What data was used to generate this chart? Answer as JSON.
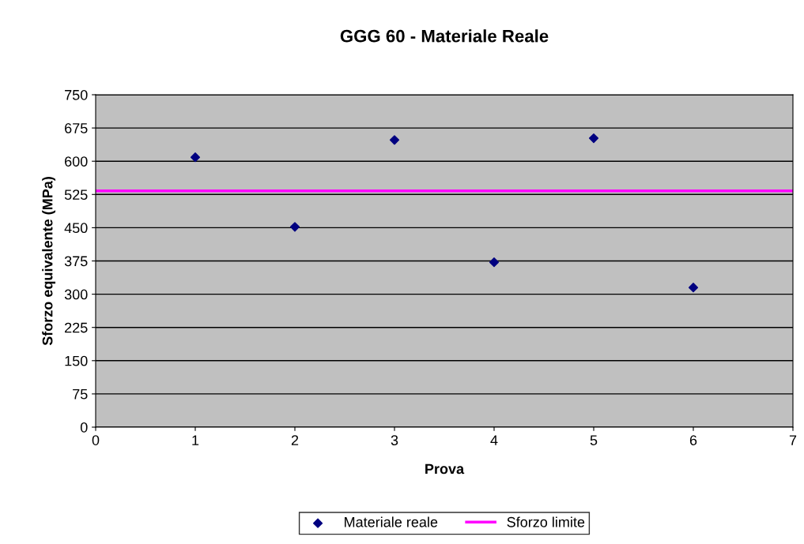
{
  "chart_data": {
    "type": "scatter",
    "title": "GGG 60 - Materiale Reale",
    "xlabel": "Prova",
    "ylabel": "Sforzo equivalente (MPa)",
    "x": [
      1,
      2,
      3,
      4,
      5,
      6
    ],
    "series": [
      {
        "name": "Materiale reale",
        "color": "#000080",
        "values": [
          609,
          452,
          648,
          372,
          652,
          315
        ],
        "marker": "diamond"
      },
      {
        "name": "Sforzo limite",
        "color": "#ff00ff",
        "type": "line",
        "x": [
          0,
          7
        ],
        "values": [
          533,
          533
        ],
        "marker": "none",
        "line_style": "solid"
      }
    ],
    "xlim": [
      0,
      7
    ],
    "xticks": [
      0,
      1,
      2,
      3,
      4,
      5,
      6,
      7
    ],
    "ylim": [
      0,
      750
    ],
    "yticks": [
      0,
      75,
      150,
      225,
      300,
      375,
      450,
      525,
      600,
      675,
      750
    ],
    "grid": "y",
    "legend": "bottom"
  }
}
